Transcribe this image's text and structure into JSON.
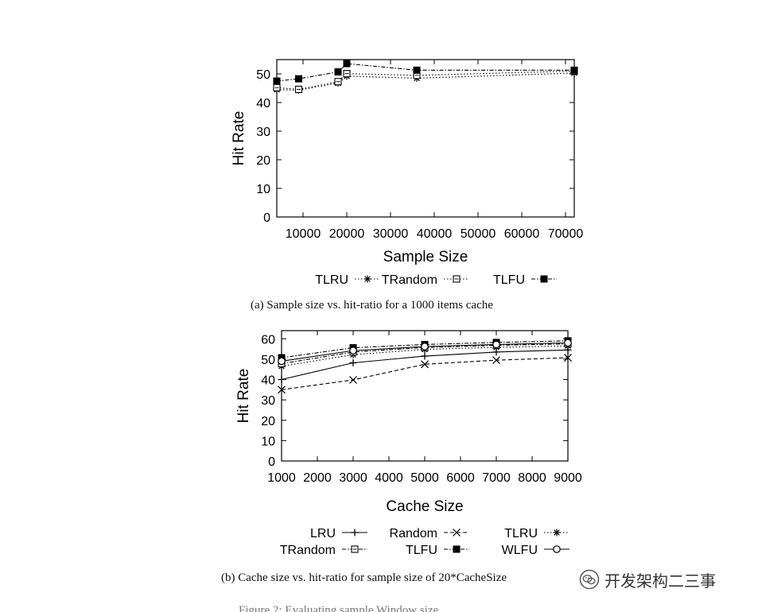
{
  "chart_data": [
    {
      "type": "line",
      "title": "",
      "xlabel": "Sample Size",
      "ylabel": "Hit Rate",
      "xlim": [
        4000,
        72000
      ],
      "ylim": [
        0,
        55
      ],
      "xticks": [
        10000,
        20000,
        30000,
        40000,
        50000,
        60000,
        70000
      ],
      "yticks": [
        0,
        10,
        20,
        30,
        40,
        50
      ],
      "grid": false,
      "legend_position": "bottom",
      "caption": "(a) Sample size vs. hit-ratio for a 1000 items cache",
      "series": [
        {
          "name": "TLRU",
          "marker": "star",
          "dash": "dotted",
          "x": [
            4000,
            9000,
            18000,
            20000,
            36000,
            72000
          ],
          "y": [
            44.5,
            44.3,
            46.8,
            49.2,
            48.5,
            50.3
          ]
        },
        {
          "name": "TRandom",
          "marker": "open-square",
          "dash": "dotted",
          "x": [
            4000,
            9000,
            18000,
            20000,
            36000,
            72000
          ],
          "y": [
            45.2,
            44.6,
            47.3,
            50.1,
            49.5,
            51.0
          ]
        },
        {
          "name": "TLFU",
          "marker": "filled-square",
          "dash": "dash-dot",
          "x": [
            4000,
            9000,
            18000,
            20000,
            36000,
            72000
          ],
          "y": [
            47.5,
            48.3,
            50.7,
            53.6,
            51.3,
            51.3
          ]
        }
      ]
    },
    {
      "type": "line",
      "title": "",
      "xlabel": "Cache Size",
      "ylabel": "Hit Rate",
      "xlim": [
        1000,
        9000
      ],
      "ylim": [
        0,
        64
      ],
      "xticks": [
        1000,
        2000,
        3000,
        4000,
        5000,
        6000,
        7000,
        8000,
        9000
      ],
      "yticks": [
        0,
        10,
        20,
        30,
        40,
        50,
        60
      ],
      "grid": false,
      "legend_position": "bottom",
      "caption": "(b) Cache size vs. hit-ratio for sample size of 20*CacheSize",
      "series": [
        {
          "name": "LRU",
          "marker": "plus",
          "dash": "solid",
          "x": [
            1000,
            3000,
            5000,
            7000,
            9000
          ],
          "y": [
            40.0,
            48.2,
            51.5,
            53.5,
            54.5
          ]
        },
        {
          "name": "Random",
          "marker": "cross",
          "dash": "dashed",
          "x": [
            1000,
            3000,
            5000,
            7000,
            9000
          ],
          "y": [
            35.0,
            39.8,
            47.5,
            49.5,
            50.7
          ]
        },
        {
          "name": "TLRU",
          "marker": "star",
          "dash": "dotted",
          "x": [
            1000,
            3000,
            5000,
            7000,
            9000
          ],
          "y": [
            46.5,
            52.2,
            54.8,
            55.8,
            56.5
          ]
        },
        {
          "name": "TRandom",
          "marker": "open-square",
          "dash": "dash-dot",
          "x": [
            1000,
            3000,
            5000,
            7000,
            9000
          ],
          "y": [
            47.8,
            53.5,
            55.7,
            56.8,
            57.5
          ]
        },
        {
          "name": "TLFU",
          "marker": "filled-square",
          "dash": "dash-dot",
          "x": [
            1000,
            3000,
            5000,
            7000,
            9000
          ],
          "y": [
            50.7,
            55.6,
            57.2,
            58.2,
            59.0
          ]
        },
        {
          "name": "WLFU",
          "marker": "circle",
          "dash": "solid",
          "x": [
            1000,
            3000,
            5000,
            7000,
            9000
          ],
          "y": [
            49.0,
            54.2,
            56.2,
            57.2,
            58.0
          ]
        }
      ]
    }
  ],
  "watermark": {
    "text": "开发架构二三事",
    "icon": "wechat-icon"
  },
  "partial_text": "Figure 2: Evaluating sample Window size"
}
